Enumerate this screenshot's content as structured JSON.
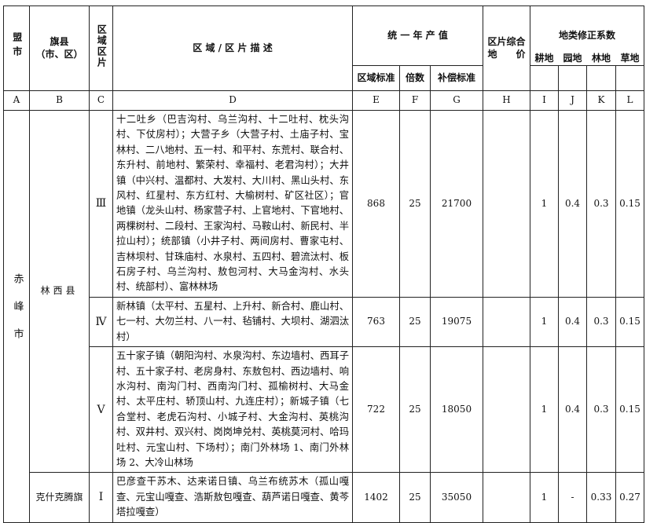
{
  "header": {
    "league": "盟市",
    "county_line1": "旗县",
    "county_line2": "（市、区）",
    "zone": "区域区片",
    "description": "区 域 / 区 片 描 述",
    "annual_output": "统 一 年 产 值",
    "zone_standard": "区域标准",
    "multiple": "倍数",
    "compensation_standard": "补偿标准",
    "composite_price_line1": "区片综合",
    "composite_price_line2": "地　　价",
    "correction": "地类修正系数",
    "farmland": "耕地",
    "orchard": "园地",
    "forest": "林地",
    "grassland": "草地"
  },
  "letters": [
    "A",
    "B",
    "C",
    "D",
    "E",
    "F",
    "G",
    "H",
    "I",
    "J",
    "K",
    "L"
  ],
  "league_name": "赤峰市",
  "rows": [
    {
      "county": "林西县",
      "zone": "Ⅲ",
      "description": "十二吐乡（巴吉沟村、乌兰沟村、十二吐村、枕头沟村、下仗房村）；大营子乡（大营子村、土庙子村、宝林村、二八地村、五一村、和平村、东荒村、联合村、东升村、前地村、繁荣村、幸福村、老君沟村）；大井镇（中兴村、温都村、大发村、大川村、黑山头村、东风村、红星村、东方红村、大榆树村、矿区社区）；官地镇（龙头山村、杨家营子村、上官地村、下官地村、两棵树村、二段村、王家沟村、马鞍山村、新民村、半拉山村）；统部镇（小井子村、两间房村、曹家屯村、吉林坝村、甘珠庙村、水泉村、五四村、碧流汰村、板石房子村、乌兰沟村、敖包河村、大马金沟村、水头村、统部村）、富林林场",
      "zone_standard": "868",
      "multiple": "25",
      "compensation": "21700",
      "composite_price": "",
      "farmland": "1",
      "orchard": "0.4",
      "forest": "0.3",
      "grassland": "0.15"
    },
    {
      "county": "林西县",
      "zone": "Ⅳ",
      "description": "新林镇（太平村、五星村、上升村、新合村、鹿山村、七一村、大勿兰村、八一村、毡铺村、大坝村、湖泗汰村）",
      "zone_standard": "763",
      "multiple": "25",
      "compensation": "19075",
      "composite_price": "",
      "farmland": "1",
      "orchard": "0.4",
      "forest": "0.3",
      "grassland": "0.15"
    },
    {
      "county": "林西县",
      "zone": "Ⅴ",
      "description": "五十家子镇（朝阳沟村、水泉沟村、东边墙村、西耳子村、五十家子村、老房身村、东敖包村、西边墙村、响水沟村、南沟门村、西南沟门村、孤榆树村、大马金村、太平庄村、轿顶山村、九连庄村）；新城子镇（七合堂村、老虎石沟村、小城子村、大金沟村、英桃沟村、双井村、双兴村、岗岗坤兑村、英桃莫河村、哈玛吐村、元宝山村、下场村）；南门外林场 1、南门外林场 2、大冷山林场",
      "zone_standard": "722",
      "multiple": "25",
      "compensation": "18050",
      "composite_price": "",
      "farmland": "1",
      "orchard": "0.4",
      "forest": "0.3",
      "grassland": "0.15"
    },
    {
      "county": "克什克腾旗",
      "zone": "Ⅰ",
      "description": "巴彦查干苏木、达来诺日镇、乌兰布统苏木（孤山嘎查、元宝山嘎查、浩斯敖包嘎查、葫芦诺日嘎查、黄芩塔拉嘎查）",
      "zone_standard": "1402",
      "multiple": "25",
      "compensation": "35050",
      "composite_price": "",
      "farmland": "1",
      "orchard": "-",
      "forest": "0.33",
      "grassland": "0.27"
    }
  ]
}
